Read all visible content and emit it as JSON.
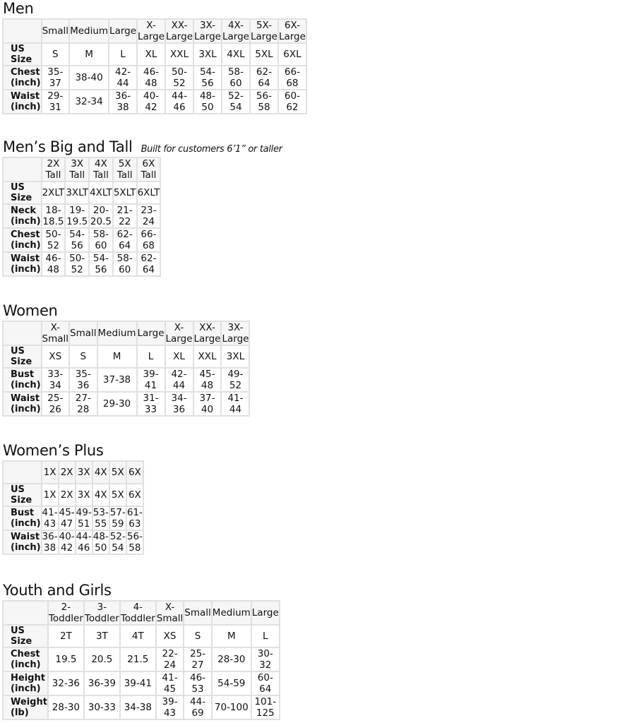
{
  "sections": [
    {
      "title": "Men",
      "subtitle": "",
      "columns": [
        "Small",
        "Medium",
        "Large",
        "X-Large",
        "XX-Large",
        "3X-Large",
        "4X-Large",
        "5X-Large",
        "6X-Large"
      ],
      "rows": [
        {
          "label": "US Size",
          "values": [
            "S",
            "M",
            "L",
            "XL",
            "XXL",
            "3XL",
            "4XL",
            "5XL",
            "6XL"
          ]
        },
        {
          "label": "Chest (inch)",
          "values": [
            "35-37",
            "38-40",
            "42-44",
            "46-48",
            "50-52",
            "54-56",
            "58-60",
            "62-64",
            "66-68"
          ]
        },
        {
          "label": "Waist (inch)",
          "values": [
            "29-31",
            "32-34",
            "36-38",
            "40-42",
            "44-46",
            "48-50",
            "52-54",
            "56-58",
            "60-62"
          ]
        }
      ]
    },
    {
      "title": "Men’s Big and Tall",
      "subtitle": "Built for customers 6’1” or taller",
      "columns": [
        "2X Tall",
        "3X Tall",
        "4X Tall",
        "5X Tall",
        "6X Tall"
      ],
      "rows": [
        {
          "label": "US Size",
          "values": [
            "2XLT",
            "3XLT",
            "4XLT",
            "5XLT",
            "6XLT"
          ]
        },
        {
          "label": "Neck (inch)",
          "values": [
            "18-18.5",
            "19-19.5",
            "20-20.5",
            "21-22",
            "23-24"
          ]
        },
        {
          "label": "Chest (inch)",
          "values": [
            "50-52",
            "54-56",
            "58-60",
            "62-64",
            "66-68"
          ]
        },
        {
          "label": "Waist (inch)",
          "values": [
            "46-48",
            "50-52",
            "54-56",
            "58-60",
            "62-64"
          ]
        }
      ]
    },
    {
      "title": "Women",
      "subtitle": "",
      "columns": [
        "X-Small",
        "Small",
        "Medium",
        "Large",
        "X-Large",
        "XX-Large",
        "3X-Large"
      ],
      "rows": [
        {
          "label": "US Size",
          "values": [
            "XS",
            "S",
            "M",
            "L",
            "XL",
            "XXL",
            "3XL"
          ]
        },
        {
          "label": "Bust (inch)",
          "values": [
            "33-34",
            "35-36",
            "37-38",
            "39-41",
            "42-44",
            "45-48",
            "49-52"
          ]
        },
        {
          "label": "Waist (inch)",
          "values": [
            "25-26",
            "27-28",
            "29-30",
            "31-33",
            "34-36",
            "37-40",
            "41-44"
          ]
        }
      ]
    },
    {
      "title": "Women’s  Plus",
      "subtitle": "",
      "columns": [
        "1X",
        "2X",
        "3X",
        "4X",
        "5X",
        "6X"
      ],
      "rows": [
        {
          "label": "US Size",
          "values": [
            "1X",
            "2X",
            "3X",
            "4X",
            "5X",
            "6X"
          ]
        },
        {
          "label": "Bust (inch)",
          "values": [
            "41-43",
            "45-47",
            "49-51",
            "53-55",
            "57-59",
            "61-63"
          ]
        },
        {
          "label": "Waist (inch)",
          "values": [
            "36-38",
            "40-42",
            "44-46",
            "48-50",
            "52-54",
            "56-58"
          ]
        }
      ]
    },
    {
      "title": "Youth and Girls",
      "subtitle": "",
      "columns": [
        "2-Toddler",
        "3-Toddler",
        "4-Toddler",
        "X-Small",
        "Small",
        "Medium",
        "Large"
      ],
      "rows": [
        {
          "label": "US Size",
          "values": [
            "2T",
            "3T",
            "4T",
            "XS",
            "S",
            "M",
            "L"
          ]
        },
        {
          "label": "Chest (inch)",
          "values": [
            "19.5",
            "20.5",
            "21.5",
            "22-24",
            "25-27",
            "28-30",
            "30-32"
          ]
        },
        {
          "label": "Height (inch)",
          "values": [
            "32-36",
            "36-39",
            "39-41",
            "41-45",
            "46-53",
            "54-59",
            "60-64"
          ]
        },
        {
          "label": "Weight (lb)",
          "values": [
            "28-30",
            "30-33",
            "34-38",
            "39-43",
            "44-69",
            "70-100",
            "101-125"
          ]
        }
      ]
    }
  ]
}
